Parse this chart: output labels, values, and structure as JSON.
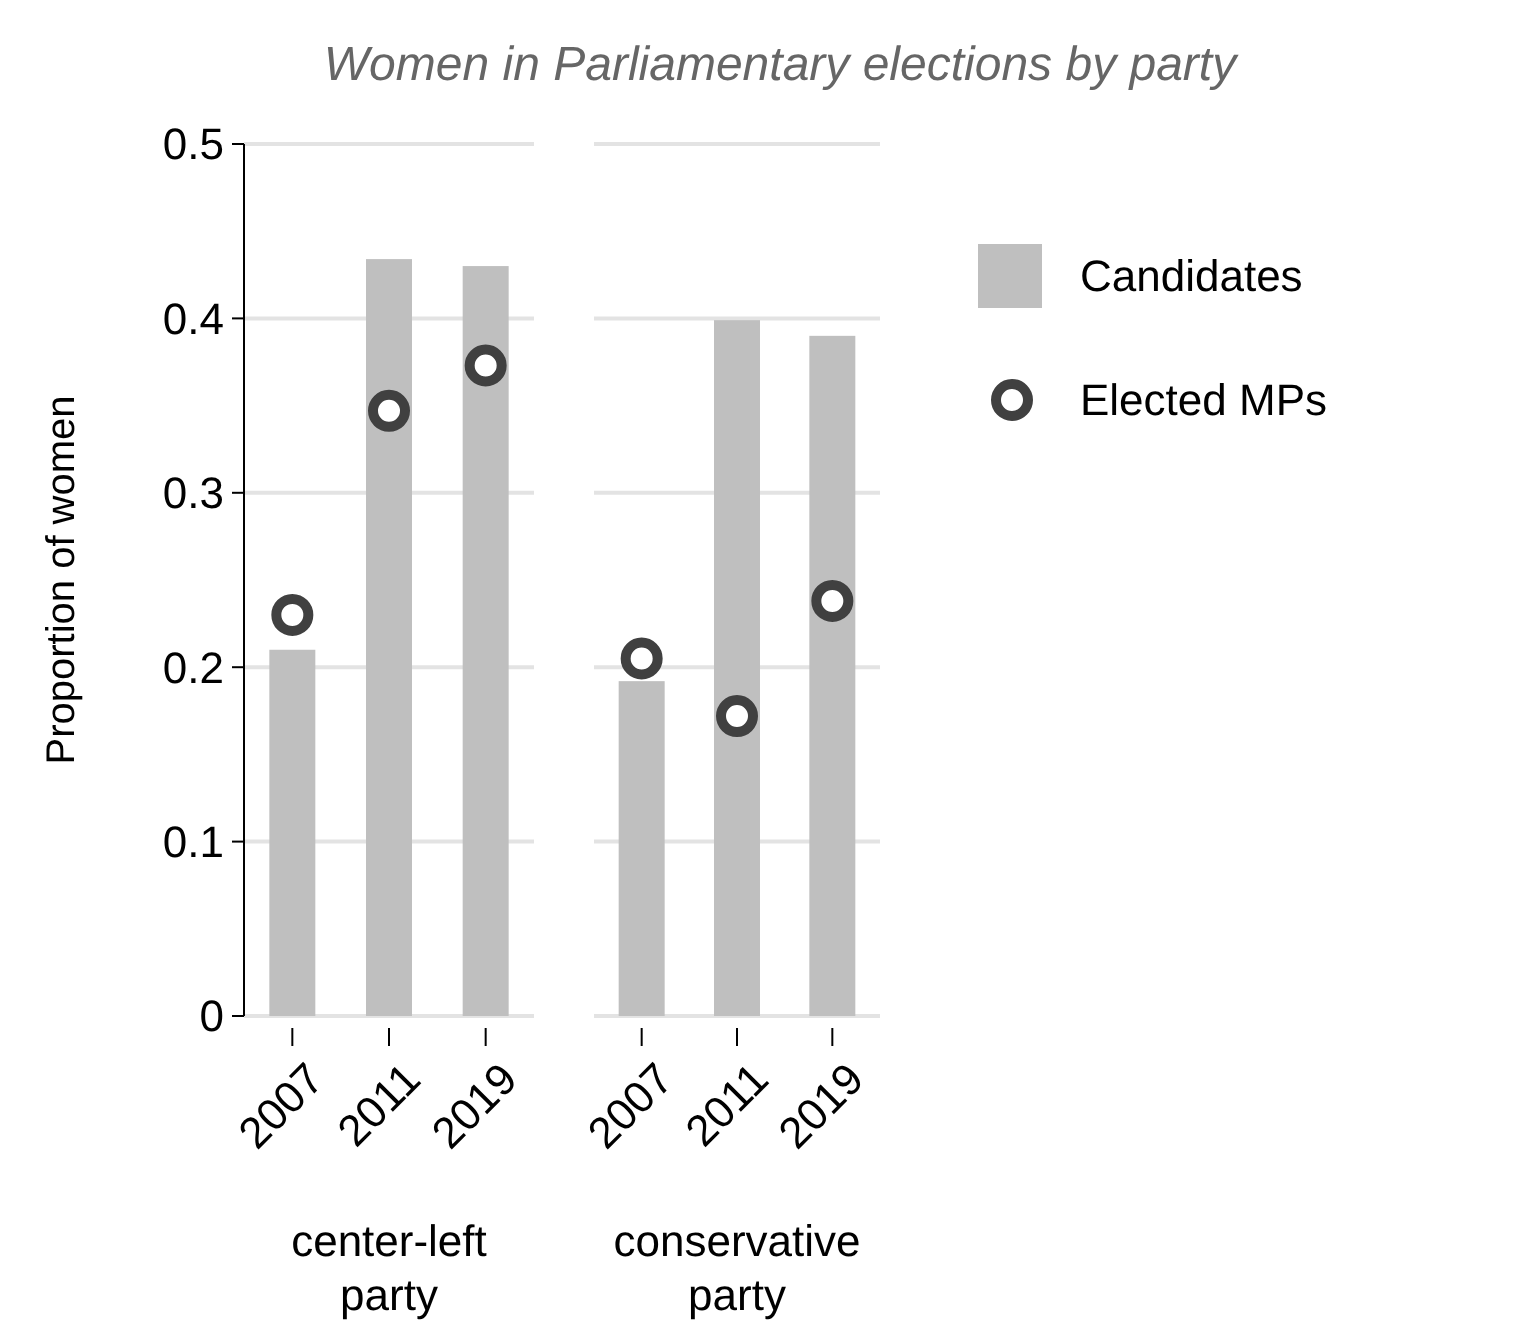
{
  "chart_data": [
    {
      "type": "bar",
      "title": "Women in Parliamentary elections by party",
      "ylabel": "Proportion of women",
      "xlabel": "center-left party",
      "categories": [
        "2007",
        "2011",
        "2019"
      ],
      "ylim": [
        0,
        0.5
      ],
      "yticks": [
        0,
        0.1,
        0.2,
        0.3,
        0.4,
        0.5
      ],
      "grid": "y",
      "marker": "circle",
      "series": [
        {
          "color": "#bfbfbf",
          "values": [
            0.21,
            0.434,
            0.43
          ]
        },
        {
          "type": "scatter",
          "color": "#404040",
          "values": [
            0.23,
            0.347,
            0.373
          ]
        }
      ]
    },
    {
      "type": "bar",
      "xlabel": "conservative party",
      "categories": [
        "2007",
        "2011",
        "2019"
      ],
      "ylim": [
        0,
        0.5
      ],
      "yticks": [
        0,
        0.1,
        0.2,
        0.3,
        0.4,
        0.5
      ],
      "grid": "y",
      "tick_labels": "x",
      "marker": "circle",
      "legend": "right",
      "series": [
        {
          "name": "Candidates",
          "color": "#bfbfbf",
          "values": [
            0.192,
            0.399,
            0.39
          ]
        },
        {
          "type": "scatter",
          "name": "Elected MPs",
          "color": "#404040",
          "values": [
            0.205,
            0.172,
            0.238
          ]
        }
      ]
    }
  ]
}
